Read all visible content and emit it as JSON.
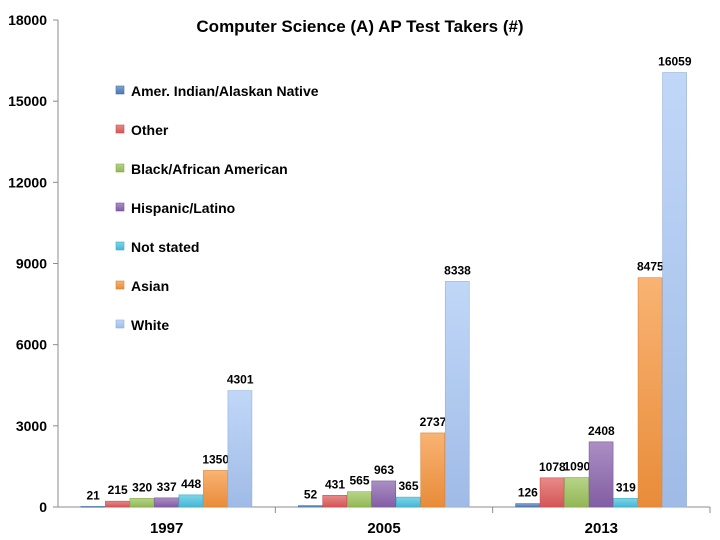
{
  "chart_data": {
    "type": "bar",
    "title": "Computer Science (A) AP Test Takers (#)",
    "xlabel": "",
    "ylabel": "",
    "categories": [
      "1997",
      "2005",
      "2013"
    ],
    "ylim": [
      0,
      18000
    ],
    "yticks": [
      0,
      3000,
      6000,
      9000,
      12000,
      15000,
      18000
    ],
    "ytick_labels": [
      "0",
      "3000",
      "6000",
      "9000",
      "12000",
      "15000",
      "18000"
    ],
    "grid": false,
    "legend_position": "top-left",
    "series": [
      {
        "name": "Amer. Indian/Alaskan Native",
        "values": [
          21,
          52,
          126
        ],
        "labels": [
          "21",
          "52",
          "126"
        ],
        "color": "#4f81bd"
      },
      {
        "name": "Other",
        "values": [
          215,
          431,
          1078
        ],
        "labels": [
          "215",
          "431",
          "1078"
        ],
        "color": "#e05b5b"
      },
      {
        "name": "Black/African American",
        "values": [
          320,
          565,
          1090
        ],
        "labels": [
          "320",
          "565",
          "1090"
        ],
        "color": "#9bc35a"
      },
      {
        "name": "Hispanic/Latino",
        "values": [
          337,
          963,
          2408
        ],
        "labels": [
          "337",
          "963",
          "2408"
        ],
        "color": "#8a63ad"
      },
      {
        "name": "Not stated",
        "values": [
          448,
          365,
          319
        ],
        "labels": [
          "448",
          "365",
          "319"
        ],
        "color": "#4bc3e0"
      },
      {
        "name": "Asian",
        "values": [
          1350,
          2737,
          8475
        ],
        "labels": [
          "1350",
          "2737",
          "8475"
        ],
        "color": "#f7953d"
      },
      {
        "name": "White",
        "values": [
          4301,
          8338,
          16059
        ],
        "labels": [
          "4301",
          "8338",
          "16059"
        ],
        "color": "#a9c7f5"
      }
    ]
  }
}
